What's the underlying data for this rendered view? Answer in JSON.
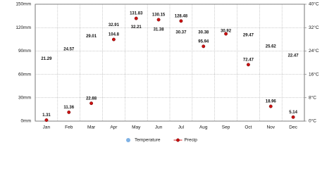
{
  "chart_data": {
    "type": "line",
    "categories": [
      "Jan",
      "Feb",
      "Mar",
      "Apr",
      "May",
      "Jun",
      "Jul",
      "Aug",
      "Sep",
      "Oct",
      "Nov",
      "Dec"
    ],
    "series": [
      {
        "name": "Temperature",
        "color": "#7fb2e5",
        "axis": "y2",
        "marker_in_plot": false,
        "values": [
          21.29,
          24.57,
          29.01,
          32.91,
          32.21,
          31.38,
          30.37,
          30.38,
          30.92,
          29.47,
          25.62,
          22.47
        ]
      },
      {
        "name": "Precip",
        "color": "#cc1111",
        "marker_in_plot": true,
        "values": [
          1.31,
          11.36,
          22.88,
          104.8,
          131.83,
          130.15,
          128.48,
          95.94,
          112,
          72.47,
          18.96,
          5.14
        ],
        "value_labels": [
          "1.31",
          "11.36",
          "22.88",
          "104.8",
          "131.83",
          "130.15",
          "128.48",
          "95.94",
          null,
          "72.47",
          "18.96",
          "5.14"
        ]
      }
    ],
    "ylim": [
      0,
      150
    ],
    "yticks": [
      {
        "value": 0,
        "label": "0mm"
      },
      {
        "value": 30,
        "label": "30mm"
      },
      {
        "value": 60,
        "label": "60mm"
      },
      {
        "value": 90,
        "label": "90mm"
      },
      {
        "value": 120,
        "label": "120mm"
      },
      {
        "value": 150,
        "label": "150mm"
      }
    ],
    "y2lim": [
      0,
      40
    ],
    "y2ticks": [
      {
        "value": 0,
        "label": "0°C"
      },
      {
        "value": 8,
        "label": "8°C"
      },
      {
        "value": 16,
        "label": "16°C"
      },
      {
        "value": 24,
        "label": "24°C"
      },
      {
        "value": 32,
        "label": "32°C"
      },
      {
        "value": 40,
        "label": "40°C"
      }
    ],
    "grid": true,
    "legend": "bottom"
  }
}
